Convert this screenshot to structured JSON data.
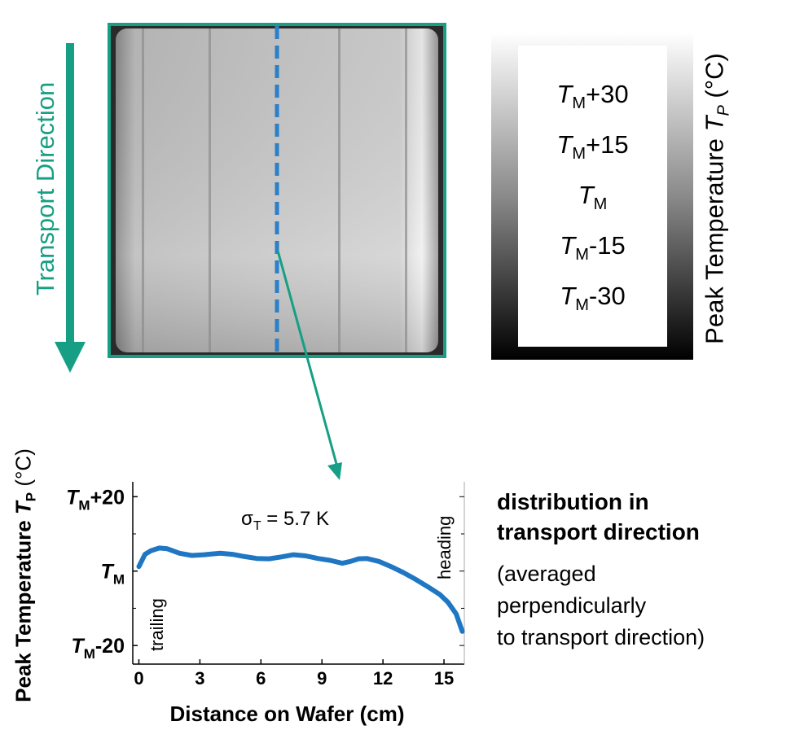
{
  "transport": {
    "label": "Transport Direction",
    "color": "#169f84"
  },
  "colorbar": {
    "title_main": "Peak Temperature ",
    "title_sym": "T",
    "title_sub": "P",
    "title_unit": " (°C)",
    "levels": [
      {
        "base": "T",
        "sub": "M",
        "suffix": "+30"
      },
      {
        "base": "T",
        "sub": "M",
        "suffix": "+15"
      },
      {
        "base": "T",
        "sub": "M",
        "suffix": ""
      },
      {
        "base": "T",
        "sub": "M",
        "suffix": "-15"
      },
      {
        "base": "T",
        "sub": "M",
        "suffix": "-30"
      }
    ]
  },
  "line_profile_color": "#2b80c7",
  "chart_data": {
    "type": "line",
    "ylabel_main": "Peak Temperature ",
    "ylabel_sym": "T",
    "ylabel_sub": "P",
    "ylabel_unit": " (°C)",
    "xlabel": "Distance on Wafer (cm)",
    "xlim": [
      -0.3,
      16
    ],
    "ylim": [
      -25,
      24
    ],
    "xticks": [
      0,
      3,
      6,
      9,
      12,
      15
    ],
    "yticks": [
      {
        "value": 20,
        "base": "T",
        "sub": "M",
        "suffix": "+20"
      },
      {
        "value": 0,
        "base": "T",
        "sub": "M",
        "suffix": ""
      },
      {
        "value": -20,
        "base": "T",
        "sub": "M",
        "suffix": "-20"
      }
    ],
    "annotation": {
      "sigma": "σ",
      "sub": "T",
      "value": " = 5.7 K"
    },
    "label_trailing": "trailing",
    "label_heading": "heading",
    "series": [
      {
        "color": "#1f77c4",
        "x": [
          0.0,
          0.3,
          0.6,
          1.0,
          1.4,
          2.0,
          2.6,
          3.2,
          4.0,
          4.6,
          5.2,
          5.8,
          6.4,
          7.0,
          7.6,
          8.2,
          8.8,
          9.4,
          10.0,
          10.4,
          10.8,
          11.2,
          11.8,
          12.4,
          13.0,
          13.6,
          14.2,
          14.8,
          15.2,
          15.6,
          15.9
        ],
        "values": [
          1.2,
          4.5,
          5.5,
          6.2,
          6.0,
          4.8,
          4.2,
          4.4,
          4.8,
          4.5,
          3.9,
          3.4,
          3.3,
          3.8,
          4.4,
          4.1,
          3.4,
          2.9,
          2.1,
          2.6,
          3.3,
          3.4,
          2.6,
          1.2,
          -0.4,
          -2.2,
          -4.2,
          -6.3,
          -8.4,
          -11.5,
          -16.2
        ]
      }
    ]
  },
  "side_text": {
    "heading_line1": "distribution in",
    "heading_line2": "transport direction",
    "note_line1": "(averaged",
    "note_line2": "perpendicularly",
    "note_line3": "to transport direction)"
  }
}
